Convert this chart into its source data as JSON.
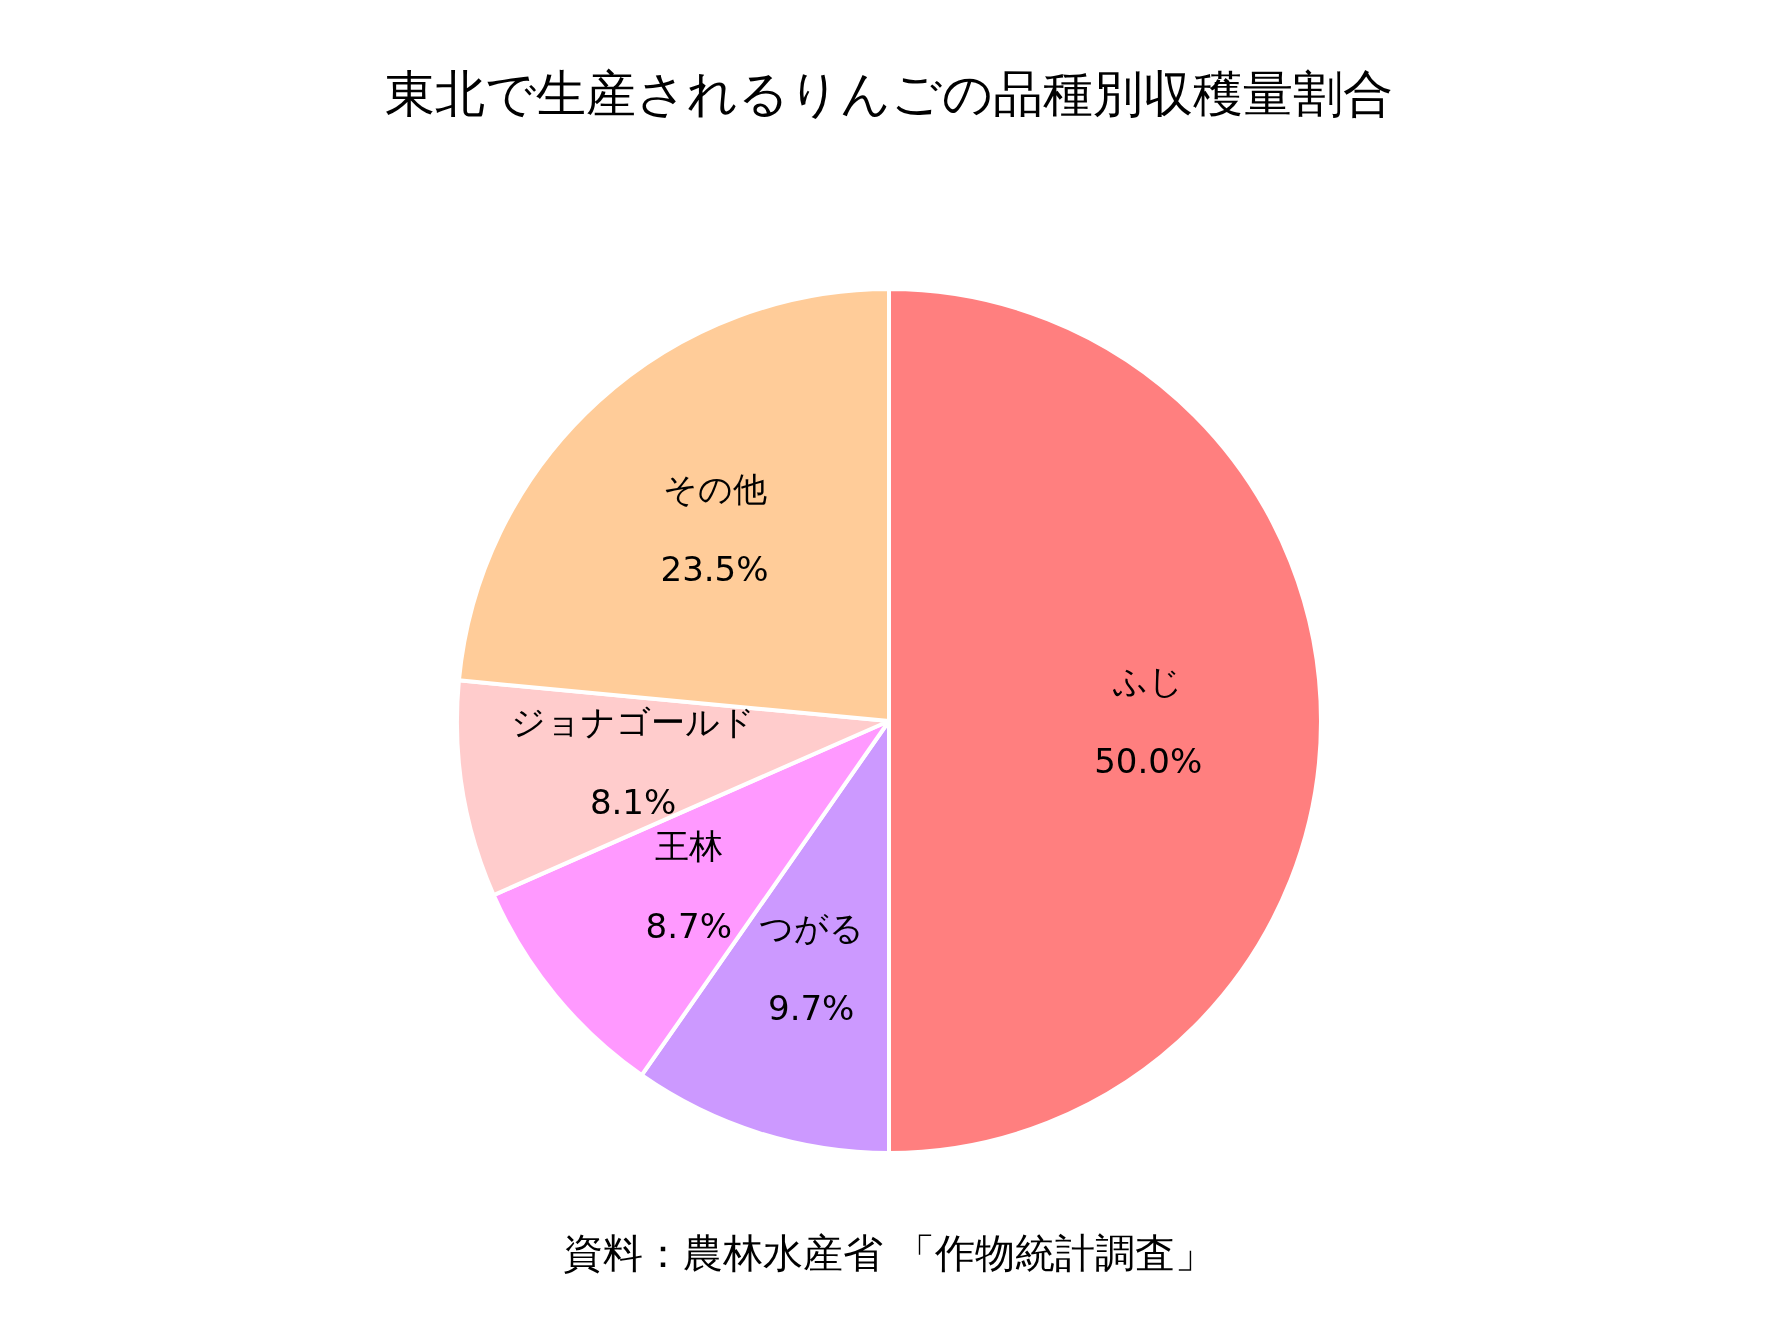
{
  "chart_data": {
    "type": "pie",
    "title": "東北で生産されるりんごの品種別収穫量割合",
    "categories": [
      "ふじ",
      "つがる",
      "王林",
      "ジョナゴールド",
      "その他"
    ],
    "values": [
      50.0,
      9.7,
      8.7,
      8.1,
      23.5
    ],
    "colors": [
      "#ff7f7f",
      "#cc99ff",
      "#ff99ff",
      "#ffcccc",
      "#ffcc99"
    ],
    "value_labels": [
      "50.0%",
      "9.7%",
      "8.7%",
      "8.1%",
      "23.5%"
    ],
    "annotations": [
      "資料：農林水産省 「作物統計調査」"
    ]
  }
}
